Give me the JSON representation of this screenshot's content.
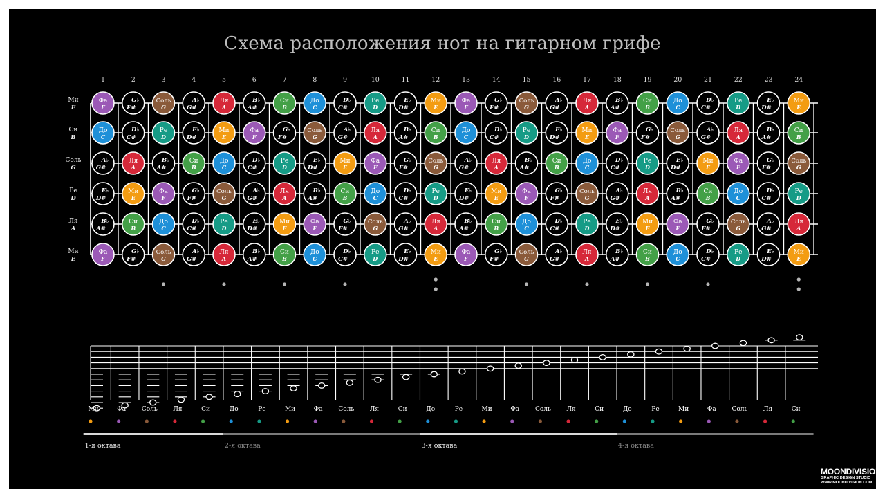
{
  "title": "Схема расположения нот на гитарном грифе",
  "colors": {
    "Фа": "#9b59b6",
    "Соль": "#8a5a3a",
    "Ля": "#d62839",
    "Си": "#43a047",
    "До": "#1e90d8",
    "Ре": "#169b86",
    "Ми": "#f39c12",
    "sharp": "#000000",
    "line": "#ffffff",
    "dot": "#b5b5b5"
  },
  "fret_numbers": [
    "1",
    "2",
    "3",
    "4",
    "5",
    "6",
    "7",
    "8",
    "9",
    "10",
    "11",
    "12",
    "13",
    "14",
    "15",
    "16",
    "17",
    "18",
    "19",
    "20",
    "21",
    "22",
    "23",
    "24"
  ],
  "string_labels": [
    {
      "ru": "Ми",
      "en": "E"
    },
    {
      "ru": "Си",
      "en": "B"
    },
    {
      "ru": "Соль",
      "en": "G"
    },
    {
      "ru": "Ре",
      "en": "D"
    },
    {
      "ru": "Ля",
      "en": "A"
    },
    {
      "ru": "Ми",
      "en": "E"
    }
  ],
  "fretboard": [
    [
      [
        "Фа",
        "F"
      ],
      [
        "G♭",
        "F#"
      ],
      [
        "Соль",
        "G"
      ],
      [
        "A♭",
        "G#"
      ],
      [
        "Ля",
        "A"
      ],
      [
        "B♭",
        "A#"
      ],
      [
        "Си",
        "B"
      ],
      [
        "До",
        "C"
      ],
      [
        "D♭",
        "C#"
      ],
      [
        "Ре",
        "D"
      ],
      [
        "E♭",
        "D#"
      ],
      [
        "Ми",
        "E"
      ],
      [
        "Фа",
        "F"
      ],
      [
        "G♭",
        "F#"
      ],
      [
        "Соль",
        "G"
      ],
      [
        "A♭",
        "G#"
      ],
      [
        "Ля",
        "A"
      ],
      [
        "B♭",
        "A#"
      ],
      [
        "Си",
        "B"
      ],
      [
        "До",
        "C"
      ],
      [
        "D♭",
        "C#"
      ],
      [
        "Ре",
        "D"
      ],
      [
        "E♭",
        "D#"
      ],
      [
        "Ми",
        "E"
      ]
    ],
    [
      [
        "До",
        "C"
      ],
      [
        "D♭",
        "C#"
      ],
      [
        "Ре",
        "D"
      ],
      [
        "E♭",
        "D#"
      ],
      [
        "Ми",
        "E"
      ],
      [
        "Фа",
        "F"
      ],
      [
        "G♭",
        "F#"
      ],
      [
        "Соль",
        "G"
      ],
      [
        "A♭",
        "G#"
      ],
      [
        "Ля",
        "A"
      ],
      [
        "B♭",
        "A#"
      ],
      [
        "Си",
        "B"
      ],
      [
        "До",
        "C"
      ],
      [
        "D♭",
        "C#"
      ],
      [
        "Ре",
        "D"
      ],
      [
        "E♭",
        "D#"
      ],
      [
        "Ми",
        "E"
      ],
      [
        "Фа",
        "F"
      ],
      [
        "G♭",
        "F#"
      ],
      [
        "Соль",
        "G"
      ],
      [
        "A♭",
        "G#"
      ],
      [
        "Ля",
        "A"
      ],
      [
        "B♭",
        "A#"
      ],
      [
        "Си",
        "B"
      ]
    ],
    [
      [
        "A♭",
        "G#"
      ],
      [
        "Ля",
        "A"
      ],
      [
        "B♭",
        "A#"
      ],
      [
        "Си",
        "B"
      ],
      [
        "До",
        "C"
      ],
      [
        "D♭",
        "C#"
      ],
      [
        "Ре",
        "D"
      ],
      [
        "E♭",
        "D#"
      ],
      [
        "Ми",
        "E"
      ],
      [
        "Фа",
        "F"
      ],
      [
        "G♭",
        "F#"
      ],
      [
        "Соль",
        "G"
      ],
      [
        "A♭",
        "G#"
      ],
      [
        "Ля",
        "A"
      ],
      [
        "B♭",
        "A#"
      ],
      [
        "Си",
        "B"
      ],
      [
        "До",
        "C"
      ],
      [
        "D♭",
        "C#"
      ],
      [
        "Ре",
        "D"
      ],
      [
        "E♭",
        "D#"
      ],
      [
        "Ми",
        "E"
      ],
      [
        "Фа",
        "F"
      ],
      [
        "G♭",
        "F#"
      ],
      [
        "Соль",
        "G"
      ]
    ],
    [
      [
        "E♭",
        "D#"
      ],
      [
        "Ми",
        "E"
      ],
      [
        "Фа",
        "F"
      ],
      [
        "G♭",
        "F#"
      ],
      [
        "Соль",
        "G"
      ],
      [
        "A♭",
        "G#"
      ],
      [
        "Ля",
        "A"
      ],
      [
        "B♭",
        "A#"
      ],
      [
        "Си",
        "B"
      ],
      [
        "До",
        "C"
      ],
      [
        "D♭",
        "C#"
      ],
      [
        "Ре",
        "D"
      ],
      [
        "E♭",
        "D#"
      ],
      [
        "Ми",
        "E"
      ],
      [
        "Фа",
        "F"
      ],
      [
        "G♭",
        "F#"
      ],
      [
        "Соль",
        "G"
      ],
      [
        "A♭",
        "G#"
      ],
      [
        "Ля",
        "A"
      ],
      [
        "B♭",
        "A#"
      ],
      [
        "Си",
        "B"
      ],
      [
        "До",
        "C"
      ],
      [
        "D♭",
        "C#"
      ],
      [
        "Ре",
        "D"
      ]
    ],
    [
      [
        "B♭",
        "A#"
      ],
      [
        "Си",
        "B"
      ],
      [
        "До",
        "C"
      ],
      [
        "D♭",
        "C#"
      ],
      [
        "Ре",
        "D"
      ],
      [
        "E♭",
        "D#"
      ],
      [
        "Ми",
        "E"
      ],
      [
        "Фа",
        "F"
      ],
      [
        "G♭",
        "F#"
      ],
      [
        "Соль",
        "G"
      ],
      [
        "A♭",
        "G#"
      ],
      [
        "Ля",
        "A"
      ],
      [
        "B♭",
        "A#"
      ],
      [
        "Си",
        "B"
      ],
      [
        "До",
        "C"
      ],
      [
        "D♭",
        "C#"
      ],
      [
        "Ре",
        "D"
      ],
      [
        "E♭",
        "D#"
      ],
      [
        "Ми",
        "E"
      ],
      [
        "Фа",
        "F"
      ],
      [
        "G♭",
        "F#"
      ],
      [
        "Соль",
        "G"
      ],
      [
        "A♭",
        "G#"
      ],
      [
        "Ля",
        "A"
      ]
    ],
    [
      [
        "Фа",
        "F"
      ],
      [
        "G♭",
        "F#"
      ],
      [
        "Соль",
        "G"
      ],
      [
        "A♭",
        "G#"
      ],
      [
        "Ля",
        "A"
      ],
      [
        "B♭",
        "A#"
      ],
      [
        "Си",
        "B"
      ],
      [
        "До",
        "C"
      ],
      [
        "D♭",
        "C#"
      ],
      [
        "Ре",
        "D"
      ],
      [
        "E♭",
        "D#"
      ],
      [
        "Ми",
        "E"
      ],
      [
        "Фа",
        "F"
      ],
      [
        "G♭",
        "F#"
      ],
      [
        "Соль",
        "G"
      ],
      [
        "A♭",
        "G#"
      ],
      [
        "Ля",
        "A"
      ],
      [
        "B♭",
        "A#"
      ],
      [
        "Си",
        "B"
      ],
      [
        "До",
        "C"
      ],
      [
        "D♭",
        "C#"
      ],
      [
        "Ре",
        "D"
      ],
      [
        "E♭",
        "D#"
      ],
      [
        "Ми",
        "E"
      ]
    ]
  ],
  "inlay_markers": [
    {
      "fret": 3,
      "count": 1
    },
    {
      "fret": 5,
      "count": 1
    },
    {
      "fret": 7,
      "count": 1
    },
    {
      "fret": 9,
      "count": 1
    },
    {
      "fret": 12,
      "count": 2
    },
    {
      "fret": 15,
      "count": 1
    },
    {
      "fret": 17,
      "count": 1
    },
    {
      "fret": 19,
      "count": 1
    },
    {
      "fret": 21,
      "count": 1
    },
    {
      "fret": 24,
      "count": 2
    }
  ],
  "staff_notes": [
    "Ми",
    "Фа",
    "Соль",
    "Ля",
    "Си",
    "До",
    "Ре",
    "Ми",
    "Фа",
    "Соль",
    "Ля",
    "Си",
    "До",
    "Ре",
    "Ми",
    "Фа",
    "Соль",
    "Ля",
    "Си",
    "До",
    "Ре",
    "Ми",
    "Фа",
    "Соль",
    "Ля",
    "Си"
  ],
  "octaves": [
    {
      "label": "1-я октава",
      "from_note": 1,
      "to_note": 5,
      "bright": true
    },
    {
      "label": "2-я октава",
      "from_note": 6,
      "to_note": 12,
      "bright": false
    },
    {
      "label": "3-я октава",
      "from_note": 13,
      "to_note": 19,
      "bright": true
    },
    {
      "label": "4-я октава",
      "from_note": 20,
      "to_note": 26,
      "bright": false
    }
  ],
  "logo": {
    "brand": "MOONDIVISION",
    "tagline": "GRAPHIC DESIGN STUDIO",
    "url": "WWW.MOONDIVISION.COM"
  }
}
